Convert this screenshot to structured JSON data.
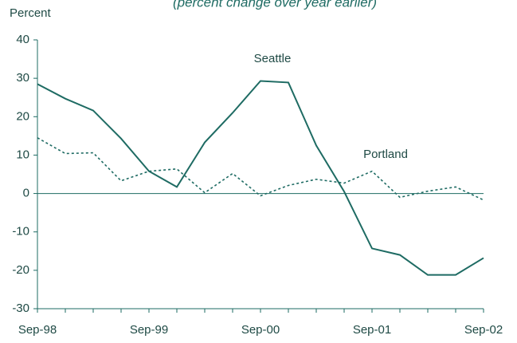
{
  "chart_data": {
    "type": "line",
    "subtitle": "(percent change over year earlier)",
    "y_label": "Percent",
    "categories": [
      "Sep-98",
      null,
      null,
      null,
      "Sep-99",
      null,
      null,
      null,
      "Sep-00",
      null,
      null,
      null,
      "Sep-01",
      null,
      null,
      null,
      "Sep-02"
    ],
    "series": [
      {
        "name": "Seattle",
        "color": "#1e6b63",
        "dash": false,
        "values": [
          28.5,
          24.7,
          21.6,
          14.3,
          5.8,
          1.7,
          13.3,
          21,
          29.3,
          28.9,
          12.5,
          0.5,
          -14.3,
          -16,
          -21.2,
          -21.2,
          -16.8
        ]
      },
      {
        "name": "Portland",
        "color": "#1e6b63",
        "dash": true,
        "values": [
          14.5,
          10.4,
          10.6,
          3.3,
          5.8,
          6.4,
          0.2,
          5.2,
          -0.6,
          2.1,
          3.7,
          2.7,
          5.8,
          -1,
          0.6,
          1.7,
          -1.7
        ]
      }
    ],
    "ylim": [
      -30,
      40
    ],
    "yticks": [
      -30,
      -20,
      -10,
      0,
      10,
      20,
      30,
      40
    ],
    "grid": false
  }
}
